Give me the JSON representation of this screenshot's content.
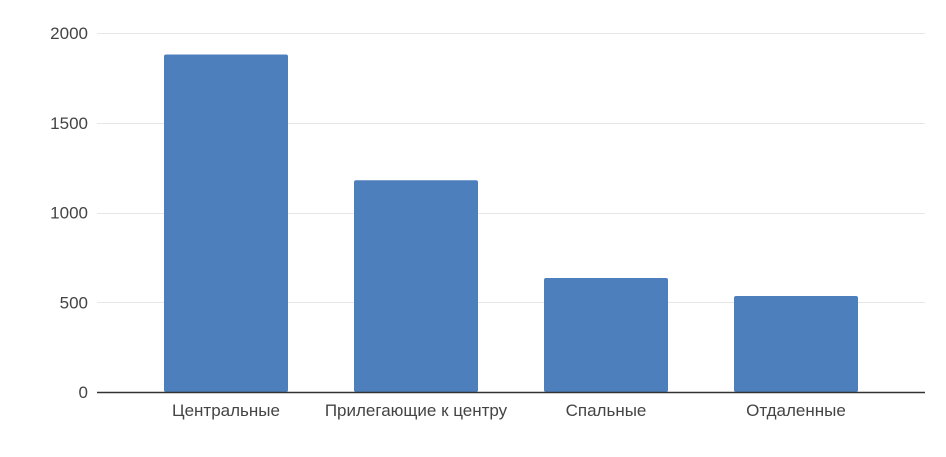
{
  "chart_data": {
    "type": "bar",
    "title": "",
    "xlabel": "",
    "ylabel": "",
    "categories": [
      "Центральные",
      "Прилегающие к центру",
      "Спальные",
      "Отдаленные"
    ],
    "values": [
      1880,
      1180,
      635,
      535
    ],
    "ylim": [
      0,
      2000
    ],
    "yticks": [
      0,
      500,
      1000,
      1500,
      2000
    ],
    "ytick_labels": [
      "0",
      "500",
      "1000",
      "1500",
      "2000"
    ],
    "grid": true,
    "legend": "none",
    "colors": {
      "bar": "#4d7fbc",
      "grid": "#e6e6e6",
      "axis": "#333333",
      "text": "#444444"
    }
  }
}
